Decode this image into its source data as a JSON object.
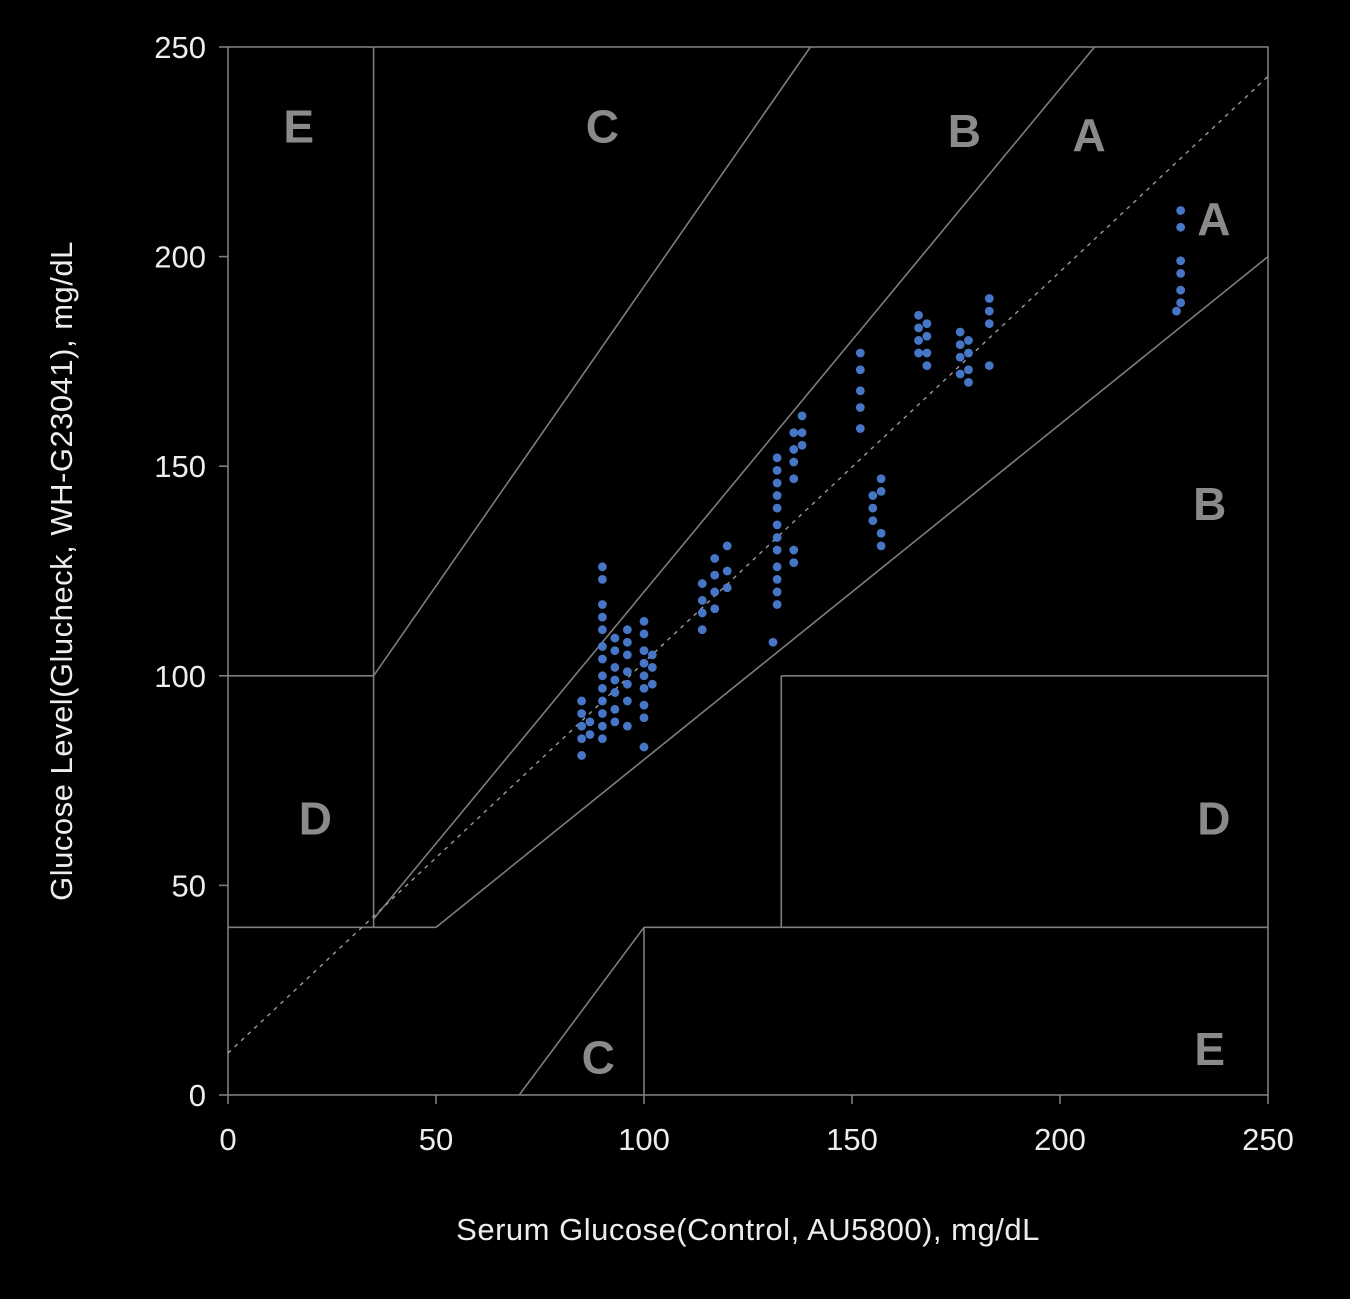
{
  "page": {
    "background": "#000000"
  },
  "chart_data": {
    "type": "scatter",
    "grid": "clarke-error-grid",
    "title": "",
    "xlabel": "Serum Glucose(Control, AU5800), mg/dL",
    "ylabel": "Glucose Level(Glucheck, WH-G23041), mg/dL",
    "xlim": [
      0,
      250
    ],
    "ylim": [
      0,
      250
    ],
    "xticks": [
      0,
      50,
      100,
      150,
      200,
      250
    ],
    "yticks": [
      0,
      50,
      100,
      150,
      200,
      250
    ],
    "legend": "none",
    "colors": {
      "points": "#4d80d8",
      "zone_lines": "#7d7d7d",
      "identity": "#9a9a9a",
      "axis_text": "#ededed",
      "zone_labels": "#8a8a8a",
      "border": "#7d7d7d",
      "background": "#000000"
    },
    "identity_line": {
      "style": "dashed",
      "from": [
        0,
        10
      ],
      "to": [
        250,
        243
      ]
    },
    "zone_lines": [
      {
        "from": [
          0,
          100
        ],
        "to": [
          35,
          100
        ]
      },
      {
        "from": [
          35,
          40
        ],
        "to": [
          35,
          250
        ]
      },
      {
        "from": [
          0,
          40
        ],
        "to": [
          50,
          40
        ]
      },
      {
        "from": [
          35,
          100
        ],
        "to": [
          140,
          250
        ]
      },
      {
        "from": [
          35,
          42
        ],
        "to": [
          208.3,
          250
        ]
      },
      {
        "from": [
          50,
          40
        ],
        "to": [
          250,
          200
        ]
      },
      {
        "from": [
          70,
          0
        ],
        "to": [
          100,
          40
        ]
      },
      {
        "from": [
          100,
          0
        ],
        "to": [
          100,
          40
        ]
      },
      {
        "from": [
          100,
          40
        ],
        "to": [
          250,
          40
        ]
      },
      {
        "from": [
          133,
          40
        ],
        "to": [
          133,
          100
        ]
      },
      {
        "from": [
          133,
          100
        ],
        "to": [
          250,
          100
        ]
      }
    ],
    "zone_labels": [
      {
        "text": "E",
        "x": 17,
        "y": 231
      },
      {
        "text": "C",
        "x": 90,
        "y": 231
      },
      {
        "text": "B",
        "x": 177,
        "y": 230
      },
      {
        "text": "A",
        "x": 207,
        "y": 229
      },
      {
        "text": "A",
        "x": 237,
        "y": 209
      },
      {
        "text": "B",
        "x": 236,
        "y": 141
      },
      {
        "text": "D",
        "x": 21,
        "y": 66
      },
      {
        "text": "D",
        "x": 237,
        "y": 66
      },
      {
        "text": "C",
        "x": 89,
        "y": 9
      },
      {
        "text": "E",
        "x": 236,
        "y": 11
      }
    ],
    "points": [
      [
        85,
        94
      ],
      [
        85,
        91
      ],
      [
        85,
        88
      ],
      [
        85,
        85
      ],
      [
        85,
        81
      ],
      [
        87,
        89
      ],
      [
        87,
        86
      ],
      [
        90,
        126
      ],
      [
        90,
        123
      ],
      [
        90,
        117
      ],
      [
        90,
        114
      ],
      [
        90,
        111
      ],
      [
        90,
        107
      ],
      [
        90,
        104
      ],
      [
        90,
        100
      ],
      [
        90,
        97
      ],
      [
        90,
        94
      ],
      [
        90,
        91
      ],
      [
        90,
        88
      ],
      [
        90,
        85
      ],
      [
        93,
        109
      ],
      [
        93,
        106
      ],
      [
        93,
        102
      ],
      [
        93,
        99
      ],
      [
        93,
        96
      ],
      [
        93,
        92
      ],
      [
        93,
        89
      ],
      [
        96,
        111
      ],
      [
        96,
        108
      ],
      [
        96,
        105
      ],
      [
        96,
        101
      ],
      [
        96,
        98
      ],
      [
        96,
        94
      ],
      [
        96,
        88
      ],
      [
        100,
        113
      ],
      [
        100,
        110
      ],
      [
        100,
        106
      ],
      [
        100,
        103
      ],
      [
        100,
        100
      ],
      [
        100,
        97
      ],
      [
        100,
        93
      ],
      [
        100,
        90
      ],
      [
        100,
        83
      ],
      [
        102,
        105
      ],
      [
        102,
        102
      ],
      [
        102,
        98
      ],
      [
        114,
        122
      ],
      [
        114,
        118
      ],
      [
        114,
        115
      ],
      [
        114,
        111
      ],
      [
        117,
        128
      ],
      [
        117,
        124
      ],
      [
        117,
        120
      ],
      [
        117,
        116
      ],
      [
        120,
        131
      ],
      [
        120,
        125
      ],
      [
        120,
        121
      ],
      [
        131,
        108
      ],
      [
        132,
        152
      ],
      [
        132,
        149
      ],
      [
        132,
        146
      ],
      [
        132,
        143
      ],
      [
        132,
        140
      ],
      [
        132,
        136
      ],
      [
        132,
        133
      ],
      [
        132,
        130
      ],
      [
        132,
        126
      ],
      [
        132,
        123
      ],
      [
        132,
        120
      ],
      [
        132,
        117
      ],
      [
        136,
        158
      ],
      [
        136,
        154
      ],
      [
        136,
        151
      ],
      [
        136,
        147
      ],
      [
        136,
        130
      ],
      [
        136,
        127
      ],
      [
        138,
        162
      ],
      [
        138,
        158
      ],
      [
        138,
        155
      ],
      [
        152,
        177
      ],
      [
        152,
        173
      ],
      [
        152,
        168
      ],
      [
        152,
        164
      ],
      [
        152,
        159
      ],
      [
        155,
        143
      ],
      [
        155,
        140
      ],
      [
        155,
        137
      ],
      [
        157,
        147
      ],
      [
        157,
        144
      ],
      [
        157,
        134
      ],
      [
        157,
        131
      ],
      [
        166,
        186
      ],
      [
        166,
        183
      ],
      [
        166,
        180
      ],
      [
        166,
        177
      ],
      [
        168,
        184
      ],
      [
        168,
        181
      ],
      [
        168,
        177
      ],
      [
        168,
        174
      ],
      [
        176,
        182
      ],
      [
        176,
        179
      ],
      [
        176,
        176
      ],
      [
        176,
        172
      ],
      [
        178,
        180
      ],
      [
        178,
        177
      ],
      [
        178,
        173
      ],
      [
        178,
        170
      ],
      [
        183,
        190
      ],
      [
        183,
        187
      ],
      [
        183,
        184
      ],
      [
        183,
        174
      ],
      [
        229,
        211
      ],
      [
        229,
        207
      ],
      [
        229,
        199
      ],
      [
        229,
        196
      ],
      [
        229,
        192
      ],
      [
        229,
        189
      ],
      [
        228,
        187
      ]
    ]
  }
}
